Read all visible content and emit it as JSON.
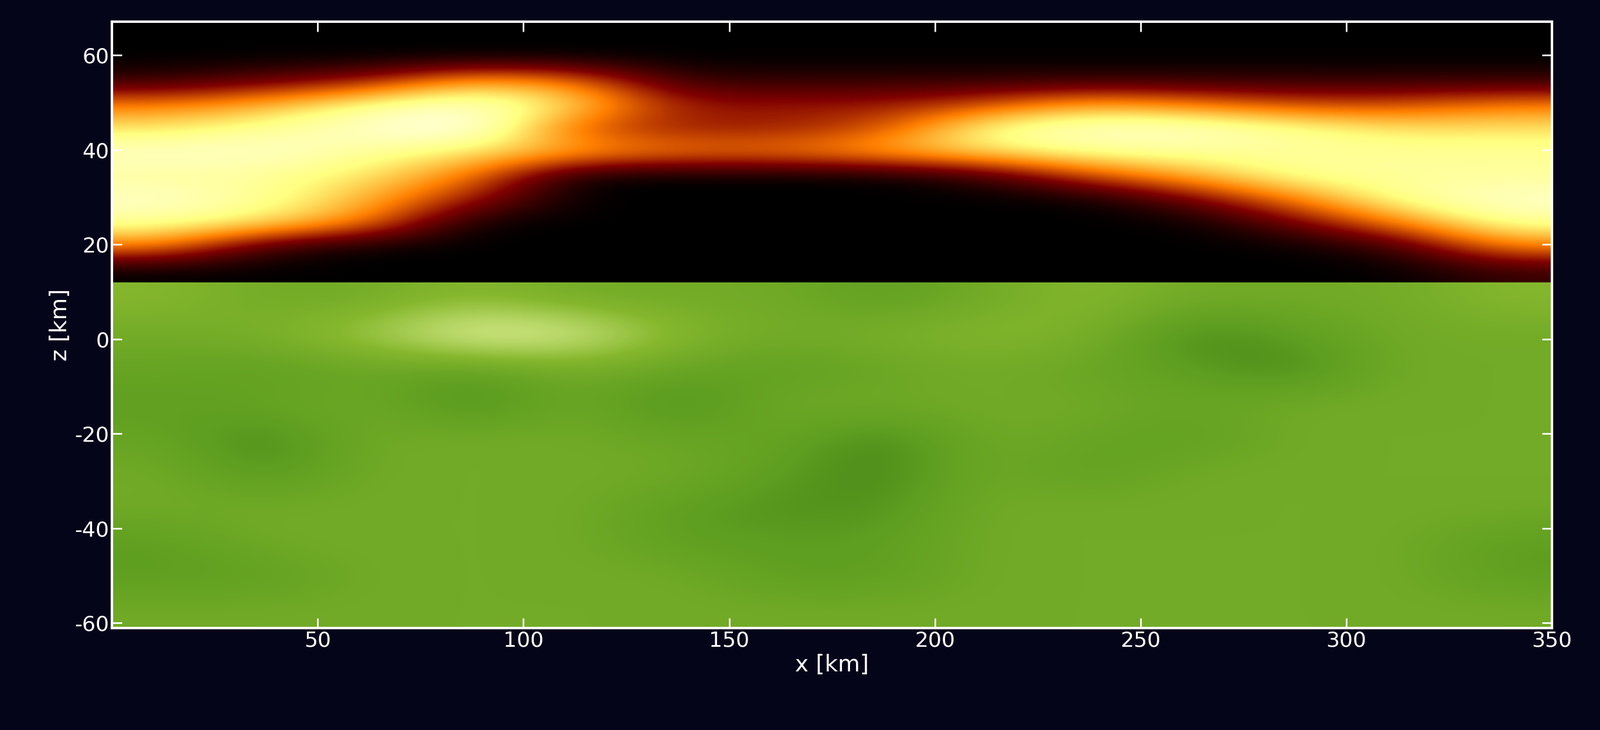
{
  "chart_data": {
    "type": "heatmap",
    "x_label": "x [km]",
    "y_label": "z [km]",
    "xlim": [
      0,
      350
    ],
    "ylim": [
      -61,
      67
    ],
    "xticks": [
      50,
      100,
      150,
      200,
      250,
      300,
      350
    ],
    "yticks": [
      -60,
      -40,
      -20,
      0,
      20,
      40,
      60
    ],
    "value_range": [
      0,
      1
    ],
    "fields": [
      {
        "x_range": [
          0,
          350
        ],
        "z_range": [
          12,
          67
        ],
        "cells": [
          [
            0,
            0,
            0,
            0,
            0,
            0,
            0,
            0,
            0,
            0,
            0,
            0,
            0,
            0.1
          ],
          [
            0.5,
            0.1,
            0,
            0,
            0,
            0,
            0,
            0,
            0,
            0,
            0,
            0,
            0.1,
            0.5
          ],
          [
            0.8,
            0.7,
            0.5,
            0,
            0,
            0,
            0,
            0,
            0,
            0,
            0,
            0.2,
            0.5,
            0.8
          ],
          [
            0.9,
            0.8,
            0.6,
            0.3,
            0,
            0,
            0,
            0,
            0,
            0,
            0.2,
            0.5,
            0.8,
            0.9
          ],
          [
            0.8,
            0.8,
            0.7,
            0.5,
            0,
            0,
            0,
            0,
            0.1,
            0.4,
            0.6,
            0.8,
            0.8,
            0.8
          ],
          [
            0.9,
            0.9,
            0.8,
            0.7,
            0.6,
            0.5,
            0.5,
            0.6,
            0.7,
            0.8,
            0.8,
            0.8,
            0.8,
            0.8
          ],
          [
            0.7,
            0.8,
            0.9,
            1.0,
            0.4,
            0.3,
            0.3,
            0.4,
            0.8,
            0.9,
            0.9,
            0.8,
            0.7,
            0.7
          ],
          [
            0.5,
            0.6,
            0.8,
            0.9,
            0.7,
            0.3,
            0.3,
            0.3,
            0.4,
            0.6,
            0.5,
            0.4,
            0.4,
            0.5
          ],
          [
            0.1,
            0.2,
            0.3,
            0.6,
            0.5,
            0.1,
            0.1,
            0.1,
            0.1,
            0.1,
            0.1,
            0.1,
            0.1,
            0.1
          ],
          [
            0,
            0,
            0,
            0,
            0,
            0,
            0,
            0,
            0,
            0,
            0,
            0,
            0,
            0
          ],
          [
            0,
            0,
            0,
            0,
            0,
            0,
            0,
            0,
            0,
            0,
            0,
            0,
            0,
            0
          ]
        ]
      },
      {
        "x_range": [
          0,
          350
        ],
        "z_range": [
          -61,
          12
        ],
        "cells": [
          [
            0.5,
            0.5,
            0.5,
            0.5,
            0.5,
            0.5,
            0.5,
            0.5,
            0.5,
            0.5,
            0.5,
            0.5,
            0.5,
            0.5
          ],
          [
            0.4,
            0.4,
            0.5,
            0.5,
            0.5,
            0.5,
            0.4,
            0.4,
            0.5,
            0.5,
            0.5,
            0.5,
            0.5,
            0.4
          ],
          [
            0.4,
            0.5,
            0.5,
            0.5,
            0.5,
            0.4,
            0.4,
            0.4,
            0.5,
            0.5,
            0.5,
            0.5,
            0.5,
            0.4
          ],
          [
            0.5,
            0.5,
            0.5,
            0.5,
            0.5,
            0.4,
            0.35,
            0.35,
            0.5,
            0.5,
            0.5,
            0.5,
            0.5,
            0.5
          ],
          [
            0.5,
            0.35,
            0.5,
            0.5,
            0.5,
            0.5,
            0.4,
            0.3,
            0.5,
            0.4,
            0.5,
            0.5,
            0.5,
            0.5
          ],
          [
            0.45,
            0.3,
            0.5,
            0.5,
            0.5,
            0.45,
            0.45,
            0.3,
            0.5,
            0.45,
            0.4,
            0.5,
            0.5,
            0.5
          ],
          [
            0.4,
            0.45,
            0.5,
            0.3,
            0.5,
            0.3,
            0.5,
            0.5,
            0.5,
            0.5,
            0.45,
            0.5,
            0.5,
            0.5
          ],
          [
            0.45,
            0.4,
            0.45,
            0.4,
            0.5,
            0.45,
            0.4,
            0.45,
            0.5,
            0.45,
            0.4,
            0.3,
            0.5,
            0.5
          ],
          [
            0.5,
            0.55,
            0.7,
            0.95,
            0.9,
            0.6,
            0.5,
            0.55,
            0.6,
            0.55,
            0.3,
            0.4,
            0.5,
            0.5
          ],
          [
            0.6,
            0.5,
            0.5,
            0.6,
            0.5,
            0.5,
            0.5,
            0.4,
            0.5,
            0.6,
            0.5,
            0.5,
            0.5,
            0.6
          ]
        ]
      }
    ]
  }
}
